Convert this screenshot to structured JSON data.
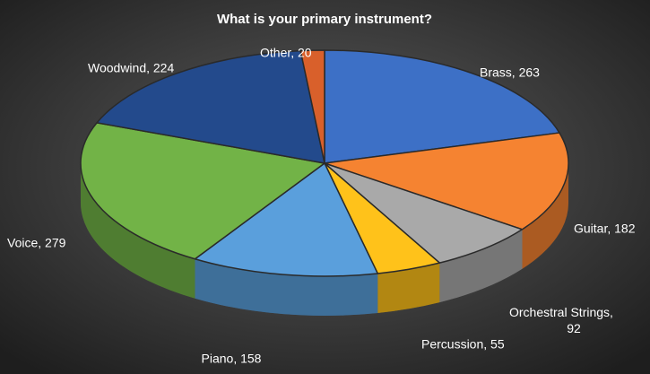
{
  "chart_data": {
    "type": "pie",
    "title": "What is your primary instrument?",
    "categories": [
      "Brass",
      "Guitar",
      "Orchestral Strings",
      "Percussion",
      "Piano",
      "Voice",
      "Woodwind",
      "Other"
    ],
    "values": [
      263,
      182,
      92,
      55,
      158,
      279,
      224,
      20
    ],
    "value_labels": [
      "Brass, 263",
      "Guitar, 182",
      "Orchestral Strings, 92",
      "Percussion, 55",
      "Piano, 158",
      "Voice, 279",
      "Woodwind, 224",
      "Other, 20"
    ],
    "colors": [
      "#3d70c6",
      "#f58331",
      "#a9a9a9",
      "#ffc21a",
      "#5a9fdc",
      "#72b347",
      "#234a8c",
      "#d9602b"
    ]
  }
}
